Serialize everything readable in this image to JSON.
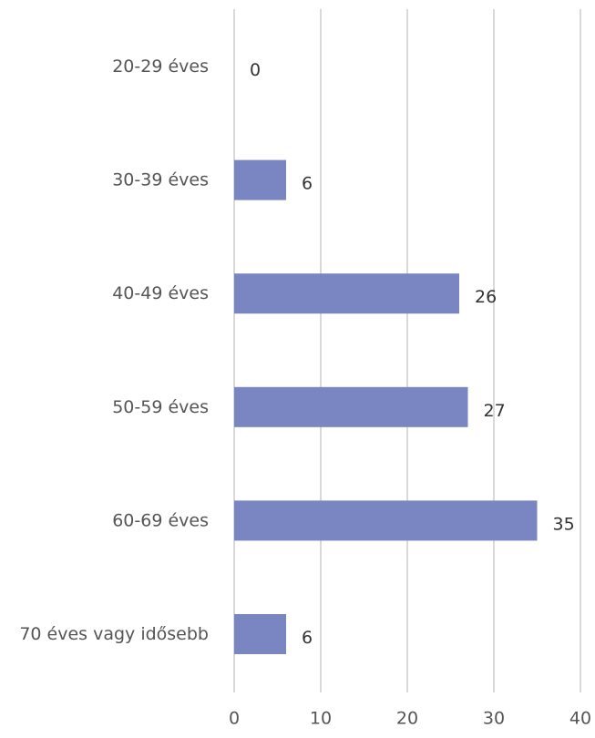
{
  "chart_data": {
    "type": "bar",
    "orientation": "horizontal",
    "categories": [
      "20-29 éves",
      "30-39 éves",
      "40-49 éves",
      "50-59 éves",
      "60-69 éves",
      "70 éves vagy idősebb"
    ],
    "values": [
      0,
      6,
      26,
      27,
      35,
      6
    ],
    "xlim": [
      0,
      40
    ],
    "xticks": [
      0,
      10,
      20,
      30,
      40
    ],
    "grid": "vertical",
    "bar_color": "#7a86c1",
    "title": "",
    "xlabel": "",
    "ylabel": "",
    "legend": "none"
  }
}
